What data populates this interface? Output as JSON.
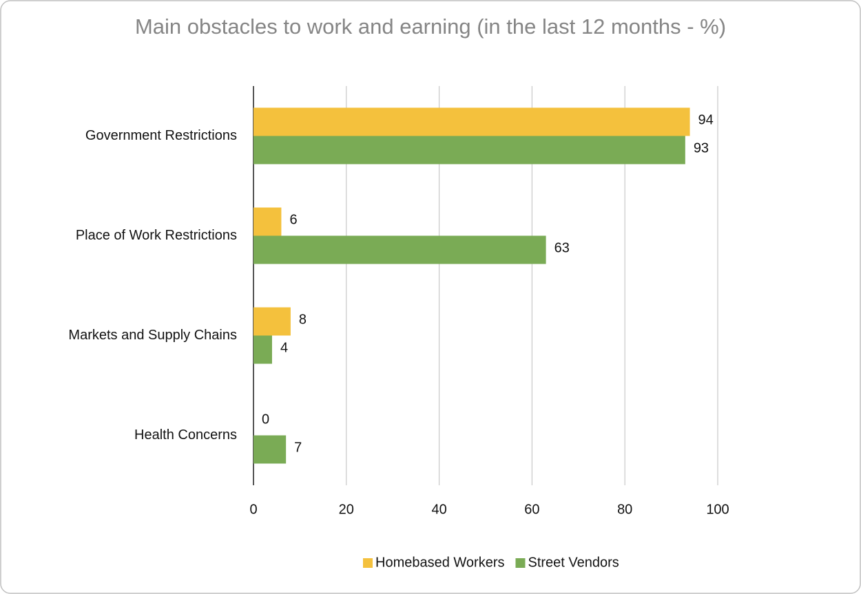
{
  "chart_data": {
    "type": "hbar",
    "title": "Main obstacles to work and earning (in the last 12 months - %)",
    "categories": [
      "Government Restrictions",
      "Place of Work Restrictions",
      "Markets and Supply Chains",
      "Health Concerns"
    ],
    "series": [
      {
        "name": "Homebased Workers",
        "color": "#f4c13d",
        "values": [
          94,
          6,
          8,
          0
        ]
      },
      {
        "name": "Street Vendors",
        "color": "#7aab55",
        "values": [
          93,
          63,
          4,
          7
        ]
      }
    ],
    "xlim": [
      0,
      100
    ],
    "xticks": [
      0,
      20,
      40,
      60,
      80,
      100
    ],
    "grid": true,
    "legend": "bottom"
  }
}
